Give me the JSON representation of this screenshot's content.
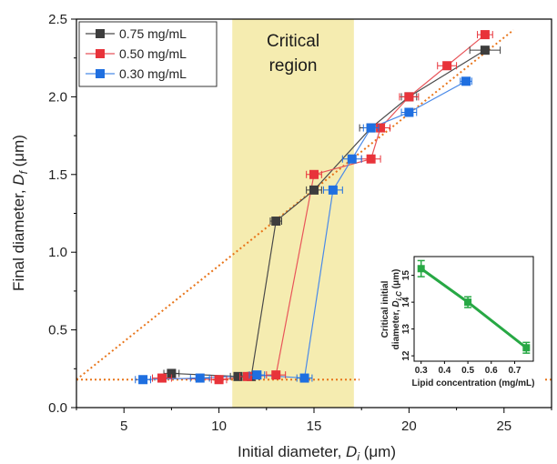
{
  "chart_data": [
    {
      "type": "line",
      "xlabel_main": "Initial diameter, ",
      "xlabel_var": "D",
      "xlabel_sub": "i",
      "xlabel_unit": " (μm)",
      "ylabel_main": "Final diameter, ",
      "ylabel_var": "D",
      "ylabel_sub": "f",
      "ylabel_unit": " (μm)",
      "xlim": [
        2.5,
        27.5
      ],
      "ylim": [
        0,
        2.5
      ],
      "xticks": [
        5,
        10,
        15,
        20,
        25
      ],
      "yticks": [
        0.0,
        0.5,
        1.0,
        1.5,
        2.0,
        2.5
      ],
      "xtick_labels": [
        "5",
        "10",
        "15",
        "20",
        "25"
      ],
      "ytick_labels": [
        "0.0",
        "0.5",
        "1.0",
        "1.5",
        "2.0",
        "2.5"
      ],
      "region": {
        "x0": 10.7,
        "x1": 17.1,
        "label_line1": "Critical",
        "label_line2": "region",
        "color": "#f5ecb0"
      },
      "legend_position": "top-left",
      "series": [
        {
          "name": "0.75 mg/mL",
          "color": "#3d3d3d",
          "line_color": "#4a4a4a",
          "x": [
            7.5,
            11,
            11.7,
            13,
            15,
            18,
            20,
            24
          ],
          "y": [
            0.22,
            0.2,
            0.2,
            1.2,
            1.4,
            1.8,
            2.0,
            2.3
          ],
          "xerr": [
            0.4,
            0.4,
            0.4,
            0.3,
            0.4,
            0.6,
            0.4,
            0.8
          ]
        },
        {
          "name": "0.50 mg/mL",
          "color": "#e8333a",
          "line_color": "#e8555a",
          "x": [
            7,
            10,
            11.5,
            13,
            15,
            18,
            18.5,
            20,
            22,
            24
          ],
          "y": [
            0.19,
            0.18,
            0.2,
            0.21,
            1.5,
            1.6,
            1.8,
            2.0,
            2.2,
            2.4
          ],
          "xerr": [
            0.5,
            0.4,
            0.4,
            0.5,
            0.4,
            0.5,
            0.5,
            0.5,
            0.5,
            0.4
          ]
        },
        {
          "name": "0.30 mg/mL",
          "color": "#1f6fe0",
          "line_color": "#4a8ae8",
          "x": [
            6,
            9,
            12,
            14.5,
            16,
            17,
            18,
            20,
            23
          ],
          "y": [
            0.18,
            0.19,
            0.21,
            0.19,
            1.4,
            1.6,
            1.8,
            1.9,
            2.1
          ],
          "xerr": [
            0.4,
            0.5,
            0.4,
            0.4,
            0.5,
            0.5,
            0.4,
            0.4,
            0.3
          ]
        }
      ],
      "guide_lines": [
        {
          "color": "#e8751a",
          "x": [
            2.5,
            27.5
          ],
          "y": [
            0.18,
            0.18
          ]
        },
        {
          "color": "#e8751a",
          "x": [
            2.5,
            25.5
          ],
          "y": [
            0.18,
            2.43
          ]
        }
      ]
    },
    {
      "type": "line",
      "xlabel": "Lipid concentration (mg/mL)",
      "ylabel_line1": "Critical initial",
      "ylabel_line2_main": "diameter, ",
      "ylabel_var": "D",
      "ylabel_sub": "i,C",
      "ylabel_unit": " (μm)",
      "xlim": [
        0.27,
        0.78
      ],
      "ylim": [
        11.8,
        15.7
      ],
      "xticks": [
        0.3,
        0.4,
        0.5,
        0.6,
        0.7
      ],
      "yticks": [
        12,
        13,
        14,
        15
      ],
      "xtick_labels": [
        "0.3",
        "0.4",
        "0.5",
        "0.6",
        "0.7"
      ],
      "ytick_labels": [
        "12",
        "13",
        "14",
        "15"
      ],
      "series": [
        {
          "color": "#27a844",
          "x": [
            0.3,
            0.5,
            0.75
          ],
          "y": [
            15.25,
            14.0,
            12.3
          ],
          "yerr": [
            0.3,
            0.2,
            0.2
          ]
        }
      ]
    }
  ]
}
